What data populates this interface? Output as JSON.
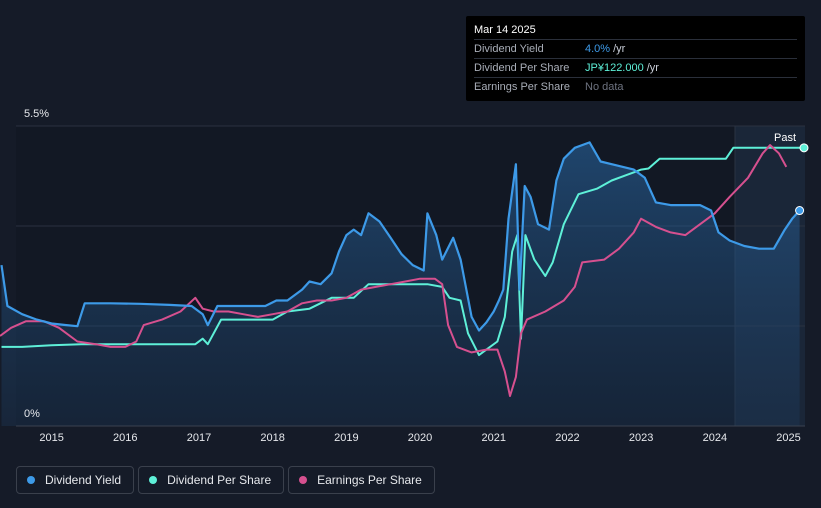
{
  "tooltip": {
    "date": "Mar 14 2025",
    "rows": [
      {
        "label": "Dividend Yield",
        "value": "4.0%",
        "unit": "/yr"
      },
      {
        "label": "Dividend Per Share",
        "value": "JP¥122.000",
        "unit": "/yr"
      },
      {
        "label": "Earnings Per Share",
        "value": "No data",
        "unit": ""
      }
    ]
  },
  "past_label": "Past",
  "legend": [
    {
      "label": "Dividend Yield",
      "color": "#3d9ae8"
    },
    {
      "label": "Dividend Per Share",
      "color": "#5ef0d8"
    },
    {
      "label": "Earnings Per Share",
      "color": "#d6508f"
    }
  ],
  "colors": {
    "background": "#151b28",
    "dividend_yield": "#3d9ae8",
    "dividend_per_share": "#5ef0d8",
    "earnings_per_share": "#d6508f"
  },
  "chart_data": {
    "type": "line",
    "title": "",
    "xlabel": "",
    "ylabel": "",
    "ylim": [
      0,
      5.5
    ],
    "xlim": [
      2014.3,
      2025.21
    ],
    "y_tick_labels": [
      "0%",
      "5.5%"
    ],
    "x_tick_labels": [
      "2015",
      "2016",
      "2017",
      "2018",
      "2019",
      "2020",
      "2021",
      "2022",
      "2023",
      "2024",
      "2025"
    ],
    "grid": true,
    "legend_position": "bottom-left",
    "series": [
      {
        "name": "Dividend Yield",
        "unit": "%",
        "points": [
          [
            2014.32,
            2.95
          ],
          [
            2014.4,
            2.2
          ],
          [
            2014.6,
            2.05
          ],
          [
            2014.8,
            1.95
          ],
          [
            2015.0,
            1.88
          ],
          [
            2015.2,
            1.85
          ],
          [
            2015.35,
            1.83
          ],
          [
            2015.45,
            2.25
          ],
          [
            2015.8,
            2.25
          ],
          [
            2016.2,
            2.24
          ],
          [
            2016.6,
            2.22
          ],
          [
            2016.9,
            2.2
          ],
          [
            2017.05,
            2.05
          ],
          [
            2017.12,
            1.85
          ],
          [
            2017.25,
            2.2
          ],
          [
            2017.5,
            2.2
          ],
          [
            2017.9,
            2.2
          ],
          [
            2018.05,
            2.3
          ],
          [
            2018.2,
            2.3
          ],
          [
            2018.4,
            2.5
          ],
          [
            2018.5,
            2.65
          ],
          [
            2018.65,
            2.6
          ],
          [
            2018.8,
            2.8
          ],
          [
            2018.9,
            3.2
          ],
          [
            2019.0,
            3.5
          ],
          [
            2019.1,
            3.6
          ],
          [
            2019.2,
            3.5
          ],
          [
            2019.3,
            3.9
          ],
          [
            2019.45,
            3.75
          ],
          [
            2019.6,
            3.45
          ],
          [
            2019.75,
            3.15
          ],
          [
            2019.9,
            2.95
          ],
          [
            2020.05,
            2.85
          ],
          [
            2020.1,
            3.9
          ],
          [
            2020.22,
            3.5
          ],
          [
            2020.3,
            3.05
          ],
          [
            2020.45,
            3.45
          ],
          [
            2020.55,
            3.05
          ],
          [
            2020.7,
            2.0
          ],
          [
            2020.8,
            1.75
          ],
          [
            2020.9,
            1.9
          ],
          [
            2021.0,
            2.1
          ],
          [
            2021.07,
            2.3
          ],
          [
            2021.13,
            2.5
          ],
          [
            2021.2,
            3.8
          ],
          [
            2021.3,
            4.8
          ],
          [
            2021.35,
            2.5
          ],
          [
            2021.42,
            4.4
          ],
          [
            2021.5,
            4.2
          ],
          [
            2021.6,
            3.7
          ],
          [
            2021.75,
            3.6
          ],
          [
            2021.85,
            4.5
          ],
          [
            2021.95,
            4.9
          ],
          [
            2022.1,
            5.1
          ],
          [
            2022.3,
            5.2
          ],
          [
            2022.45,
            4.85
          ],
          [
            2022.6,
            4.8
          ],
          [
            2022.9,
            4.7
          ],
          [
            2023.05,
            4.55
          ],
          [
            2023.2,
            4.1
          ],
          [
            2023.4,
            4.05
          ],
          [
            2023.8,
            4.05
          ],
          [
            2023.95,
            3.95
          ],
          [
            2024.05,
            3.55
          ],
          [
            2024.2,
            3.4
          ],
          [
            2024.4,
            3.3
          ],
          [
            2024.6,
            3.25
          ],
          [
            2024.8,
            3.25
          ],
          [
            2024.95,
            3.6
          ],
          [
            2025.05,
            3.8
          ],
          [
            2025.15,
            3.95
          ]
        ]
      },
      {
        "name": "Dividend Per Share",
        "unit": "JP¥",
        "points": [
          [
            2014.32,
            1.45
          ],
          [
            2014.6,
            1.45
          ],
          [
            2015.0,
            1.48
          ],
          [
            2015.4,
            1.5
          ],
          [
            2016.0,
            1.5
          ],
          [
            2016.5,
            1.5
          ],
          [
            2016.95,
            1.5
          ],
          [
            2017.05,
            1.6
          ],
          [
            2017.12,
            1.5
          ],
          [
            2017.3,
            1.95
          ],
          [
            2017.6,
            1.95
          ],
          [
            2018.0,
            1.95
          ],
          [
            2018.2,
            2.1
          ],
          [
            2018.5,
            2.15
          ],
          [
            2018.8,
            2.35
          ],
          [
            2019.1,
            2.35
          ],
          [
            2019.3,
            2.6
          ],
          [
            2019.5,
            2.6
          ],
          [
            2019.8,
            2.6
          ],
          [
            2020.1,
            2.6
          ],
          [
            2020.3,
            2.55
          ],
          [
            2020.4,
            2.35
          ],
          [
            2020.55,
            2.3
          ],
          [
            2020.65,
            1.7
          ],
          [
            2020.8,
            1.3
          ],
          [
            2020.9,
            1.4
          ],
          [
            2021.05,
            1.55
          ],
          [
            2021.15,
            2.0
          ],
          [
            2021.25,
            3.2
          ],
          [
            2021.32,
            3.5
          ],
          [
            2021.37,
            1.6
          ],
          [
            2021.43,
            3.5
          ],
          [
            2021.55,
            3.05
          ],
          [
            2021.7,
            2.75
          ],
          [
            2021.8,
            3.0
          ],
          [
            2021.95,
            3.7
          ],
          [
            2022.15,
            4.25
          ],
          [
            2022.4,
            4.35
          ],
          [
            2022.6,
            4.5
          ],
          [
            2022.8,
            4.6
          ],
          [
            2023.0,
            4.7
          ],
          [
            2023.1,
            4.72
          ],
          [
            2023.25,
            4.9
          ],
          [
            2023.6,
            4.9
          ],
          [
            2024.0,
            4.9
          ],
          [
            2024.15,
            4.9
          ],
          [
            2024.25,
            5.1
          ],
          [
            2024.6,
            5.1
          ],
          [
            2025.21,
            5.1
          ]
        ]
      },
      {
        "name": "Earnings Per Share",
        "unit": "JP¥",
        "points": [
          [
            2014.3,
            1.65
          ],
          [
            2014.45,
            1.8
          ],
          [
            2014.65,
            1.92
          ],
          [
            2014.9,
            1.92
          ],
          [
            2015.1,
            1.8
          ],
          [
            2015.35,
            1.55
          ],
          [
            2015.6,
            1.5
          ],
          [
            2015.8,
            1.45
          ],
          [
            2016.0,
            1.45
          ],
          [
            2016.15,
            1.55
          ],
          [
            2016.25,
            1.85
          ],
          [
            2016.5,
            1.95
          ],
          [
            2016.75,
            2.1
          ],
          [
            2016.95,
            2.35
          ],
          [
            2017.05,
            2.15
          ],
          [
            2017.2,
            2.1
          ],
          [
            2017.4,
            2.1
          ],
          [
            2017.6,
            2.05
          ],
          [
            2017.8,
            2.0
          ],
          [
            2018.0,
            2.05
          ],
          [
            2018.2,
            2.1
          ],
          [
            2018.4,
            2.25
          ],
          [
            2018.6,
            2.3
          ],
          [
            2018.8,
            2.3
          ],
          [
            2019.0,
            2.35
          ],
          [
            2019.2,
            2.5
          ],
          [
            2019.4,
            2.55
          ],
          [
            2019.6,
            2.6
          ],
          [
            2019.8,
            2.65
          ],
          [
            2020.0,
            2.7
          ],
          [
            2020.2,
            2.7
          ],
          [
            2020.3,
            2.6
          ],
          [
            2020.38,
            1.85
          ],
          [
            2020.5,
            1.45
          ],
          [
            2020.7,
            1.35
          ],
          [
            2020.9,
            1.4
          ],
          [
            2021.05,
            1.4
          ],
          [
            2021.15,
            1.0
          ],
          [
            2021.22,
            0.55
          ],
          [
            2021.3,
            0.9
          ],
          [
            2021.37,
            1.7
          ],
          [
            2021.45,
            1.95
          ],
          [
            2021.7,
            2.1
          ],
          [
            2021.95,
            2.3
          ],
          [
            2022.1,
            2.55
          ],
          [
            2022.2,
            3.0
          ],
          [
            2022.5,
            3.05
          ],
          [
            2022.7,
            3.25
          ],
          [
            2022.9,
            3.55
          ],
          [
            2023.0,
            3.8
          ],
          [
            2023.2,
            3.65
          ],
          [
            2023.4,
            3.55
          ],
          [
            2023.6,
            3.5
          ],
          [
            2023.8,
            3.7
          ],
          [
            2024.0,
            3.9
          ],
          [
            2024.2,
            4.2
          ],
          [
            2024.45,
            4.55
          ],
          [
            2024.65,
            5.0
          ],
          [
            2024.75,
            5.15
          ],
          [
            2024.87,
            5.0
          ],
          [
            2024.97,
            4.75
          ]
        ]
      }
    ]
  }
}
